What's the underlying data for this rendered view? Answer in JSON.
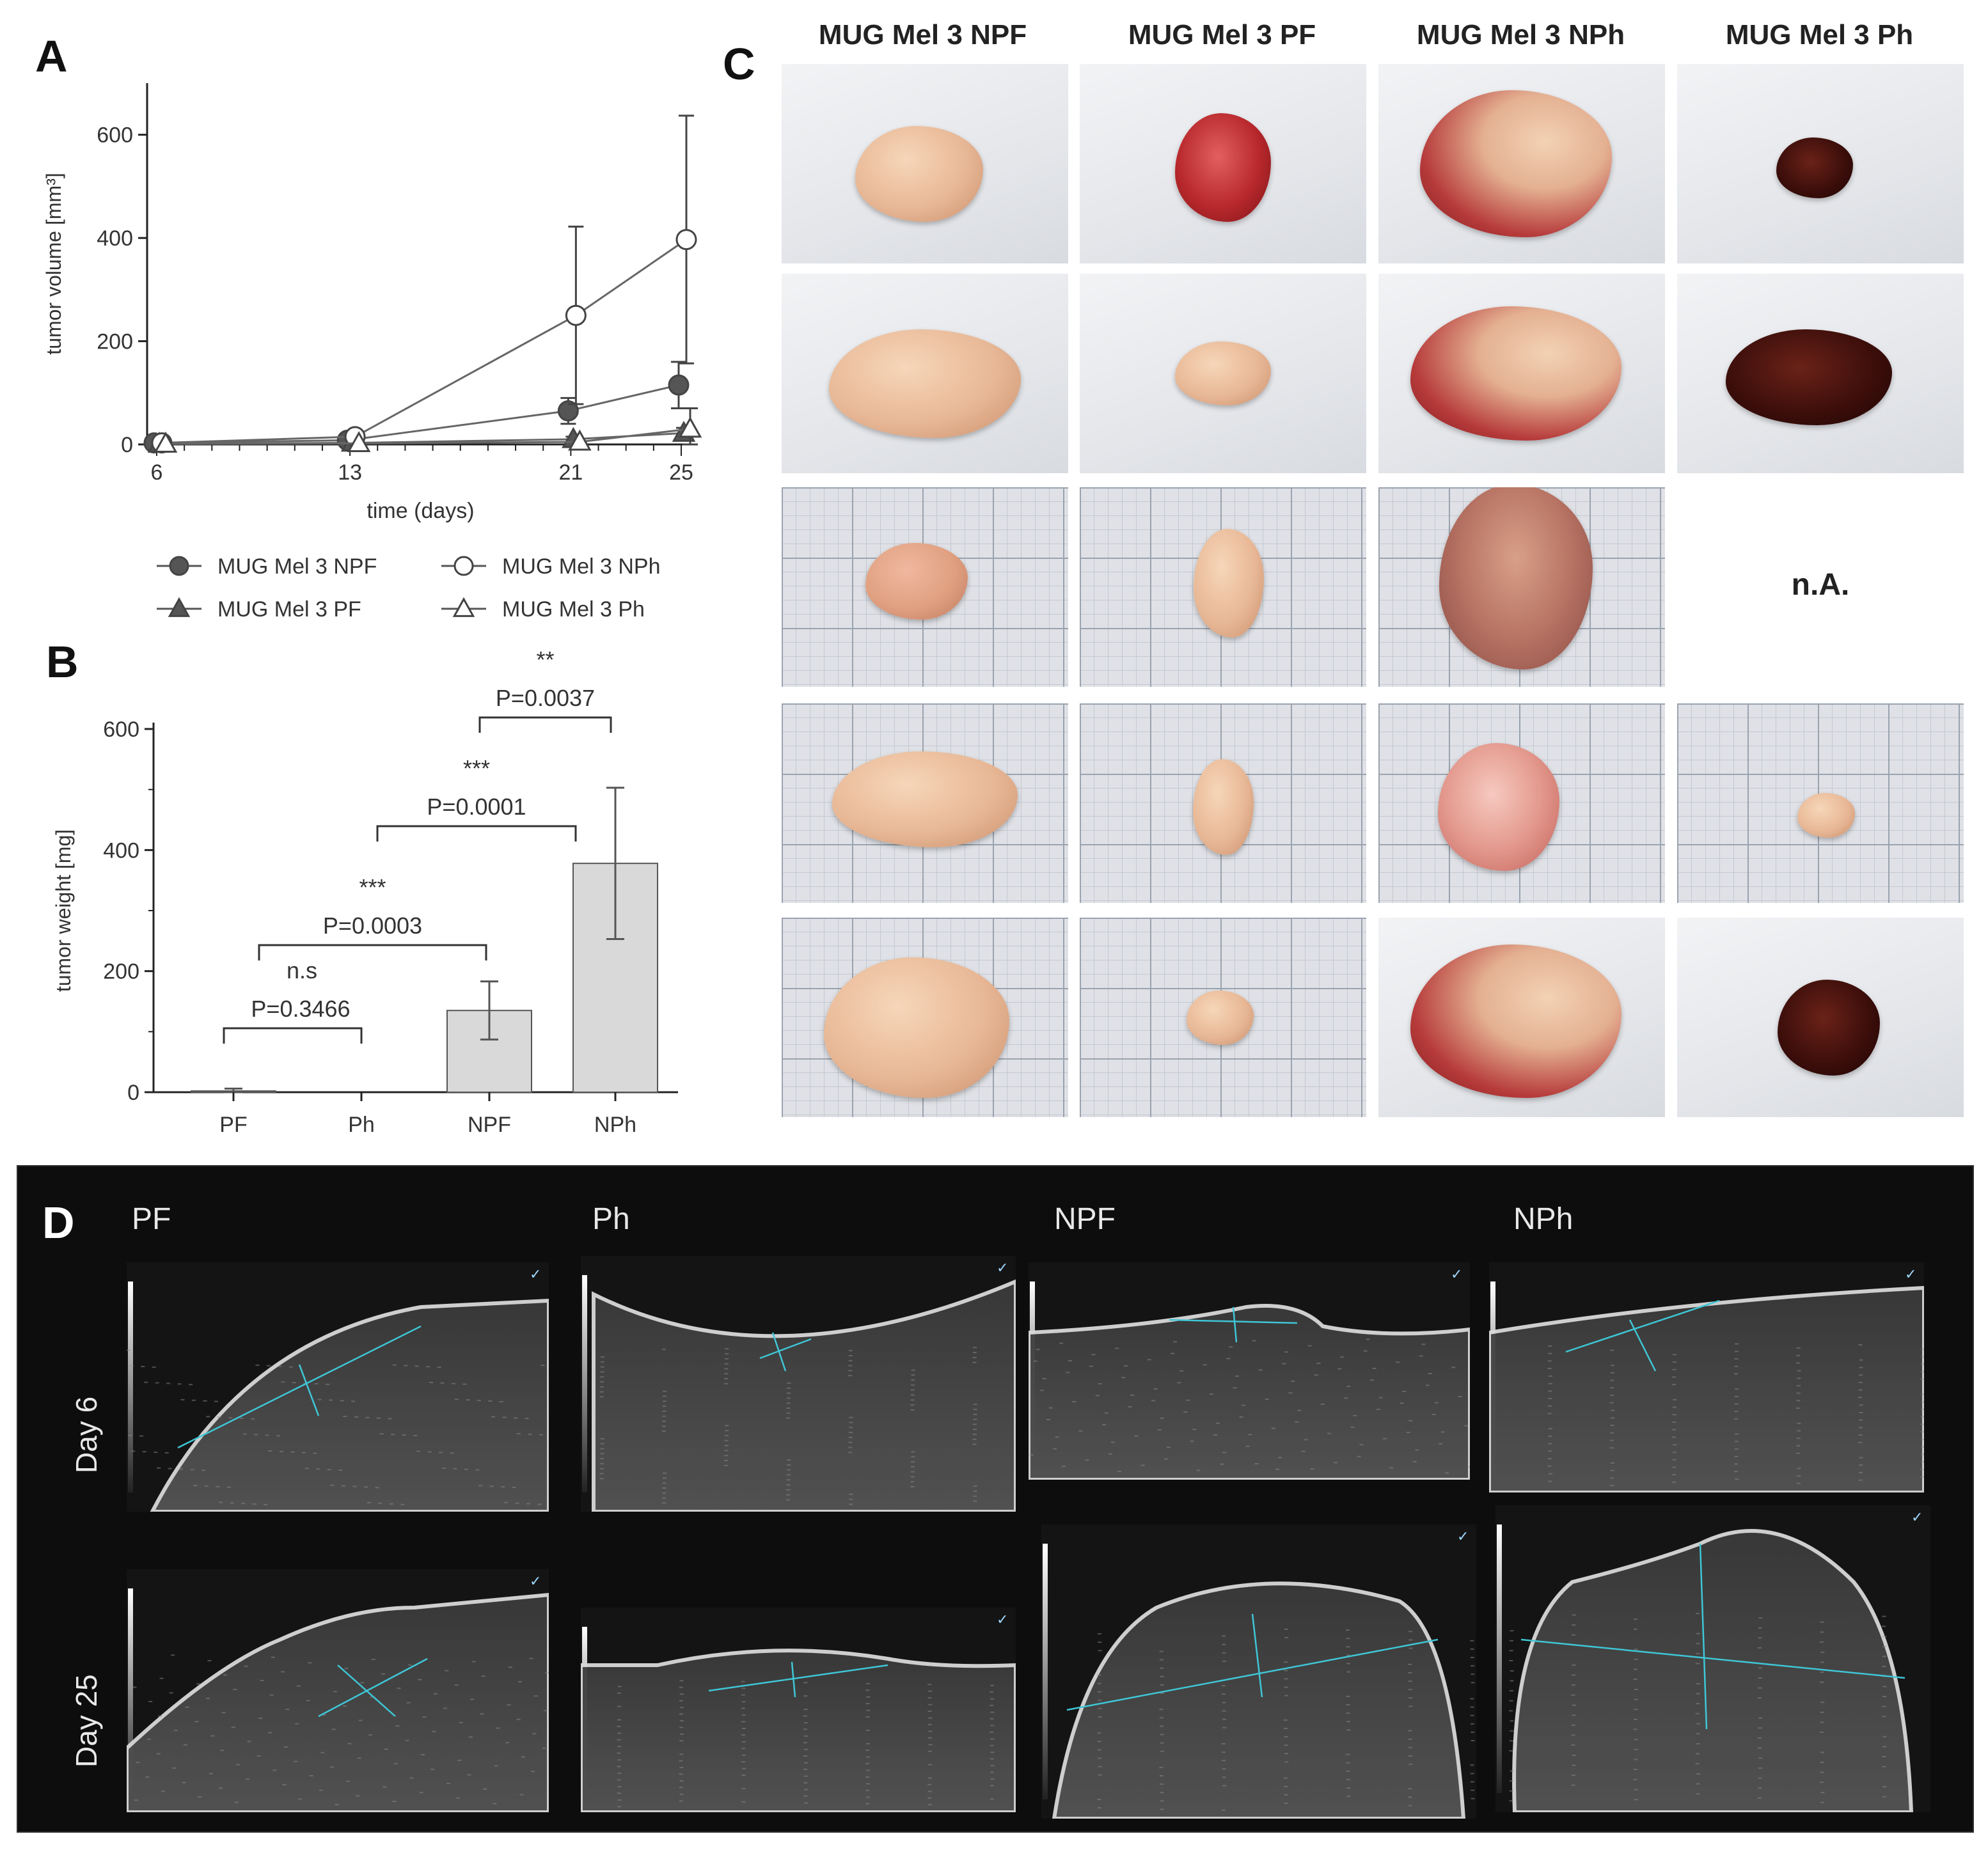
{
  "panels": {
    "A": {
      "letter": "A",
      "chart_data": {
        "type": "line",
        "xlabel": "time (days)",
        "ylabel": "tumor volume [mm³]",
        "xticks": [
          "6",
          "13",
          "21",
          "25"
        ],
        "yticks": [
          "0",
          "200",
          "400",
          "600"
        ],
        "ylim": [
          0,
          700
        ],
        "xlim": [
          5,
          26
        ],
        "series": [
          {
            "name": "MUG Mel 3 NPF",
            "marker": "filled-circle",
            "x": [
              6,
              13,
              21,
              25
            ],
            "y": [
              3,
              8,
              65,
              115
            ],
            "err": [
              2,
              5,
              25,
              45
            ]
          },
          {
            "name": "MUG Mel 3 PF",
            "marker": "filled-triangle",
            "x": [
              6,
              13,
              21,
              25
            ],
            "y": [
              1,
              3,
              10,
              22
            ],
            "err": [
              1,
              2,
              5,
              10
            ]
          },
          {
            "name": "MUG Mel 3 NPh",
            "marker": "open-circle",
            "x": [
              6,
              13,
              21,
              25
            ],
            "y": [
              3,
              15,
              250,
              397
            ],
            "err": [
              2,
              8,
              172,
              240
            ]
          },
          {
            "name": "MUG Mel 3 Ph",
            "marker": "open-triangle",
            "x": [
              6,
              13,
              21,
              25
            ],
            "y": [
              1,
              2,
              5,
              30
            ],
            "err": [
              1,
              1,
              3,
              40
            ]
          }
        ]
      }
    },
    "B": {
      "letter": "B",
      "chart_data": {
        "type": "bar",
        "ylabel": "tumor weight [mg]",
        "categories": [
          "PF",
          "Ph",
          "NPF",
          "NPh"
        ],
        "values": [
          2,
          0,
          135,
          378
        ],
        "err": [
          4,
          0,
          48,
          125
        ],
        "yticks": [
          "0",
          "200",
          "400",
          "600"
        ],
        "ylim": [
          0,
          600
        ],
        "annotations": [
          {
            "from": "PF",
            "to": "Ph",
            "stars": "n.s",
            "p": "P=0.3466"
          },
          {
            "from": "PF",
            "to": "NPF",
            "stars": "***",
            "p": "P=0.0003"
          },
          {
            "from": "Ph",
            "to": "NPh",
            "stars": "***",
            "p": "P=0.0001"
          },
          {
            "from": "NPF",
            "to": "NPh",
            "stars": "**",
            "p": "P=0.0037"
          }
        ]
      }
    },
    "C": {
      "letter": "C",
      "columns": [
        "MUG Mel 3 NPF",
        "MUG Mel 3 PF",
        "MUG Mel 3 NPh",
        "MUG Mel 3 Ph"
      ],
      "na_label": "n.A."
    },
    "D": {
      "letter": "D",
      "columns": [
        "PF",
        "Ph",
        "NPF",
        "NPh"
      ],
      "rows": [
        "Day 6",
        "Day 25"
      ]
    }
  },
  "colors": {
    "tissue_pale": "#e8b896",
    "tissue_red": "#b8282c",
    "tissue_dark": "#3a0d0a",
    "bar_fill": "#d9d9d9",
    "measure_line": "#3fc6d6"
  }
}
